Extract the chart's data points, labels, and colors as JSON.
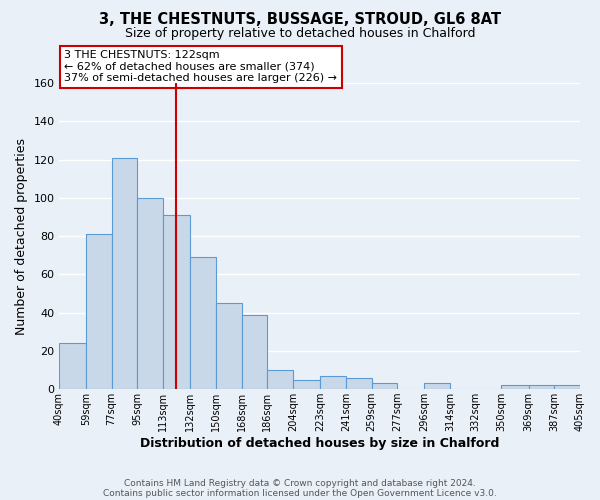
{
  "title": "3, THE CHESTNUTS, BUSSAGE, STROUD, GL6 8AT",
  "subtitle": "Size of property relative to detached houses in Chalford",
  "xlabel": "Distribution of detached houses by size in Chalford",
  "ylabel": "Number of detached properties",
  "bar_color": "#c8d8e8",
  "bar_edge_color": "#5b9bd5",
  "background_color": "#eaf0f8",
  "grid_color": "#ffffff",
  "vline_x": 122,
  "vline_color": "#cc0000",
  "bin_edges": [
    40,
    59,
    77,
    95,
    113,
    132,
    150,
    168,
    186,
    204,
    223,
    241,
    259,
    277,
    296,
    314,
    332,
    350,
    369,
    387,
    405
  ],
  "bin_labels": [
    "40sqm",
    "59sqm",
    "77sqm",
    "95sqm",
    "113sqm",
    "132sqm",
    "150sqm",
    "168sqm",
    "186sqm",
    "204sqm",
    "223sqm",
    "241sqm",
    "259sqm",
    "277sqm",
    "296sqm",
    "314sqm",
    "332sqm",
    "350sqm",
    "369sqm",
    "387sqm",
    "405sqm"
  ],
  "counts": [
    24,
    81,
    121,
    100,
    91,
    69,
    45,
    39,
    10,
    5,
    7,
    6,
    3,
    0,
    3,
    0,
    0,
    2,
    2,
    2
  ],
  "ylim": [
    0,
    160
  ],
  "yticks": [
    0,
    20,
    40,
    60,
    80,
    100,
    120,
    140,
    160
  ],
  "annotation_title": "3 THE CHESTNUTS: 122sqm",
  "annotation_line1": "← 62% of detached houses are smaller (374)",
  "annotation_line2": "37% of semi-detached houses are larger (226) →",
  "annotation_box_color": "#ffffff",
  "annotation_border_color": "#cc0000",
  "footer1": "Contains HM Land Registry data © Crown copyright and database right 2024.",
  "footer2": "Contains public sector information licensed under the Open Government Licence v3.0."
}
